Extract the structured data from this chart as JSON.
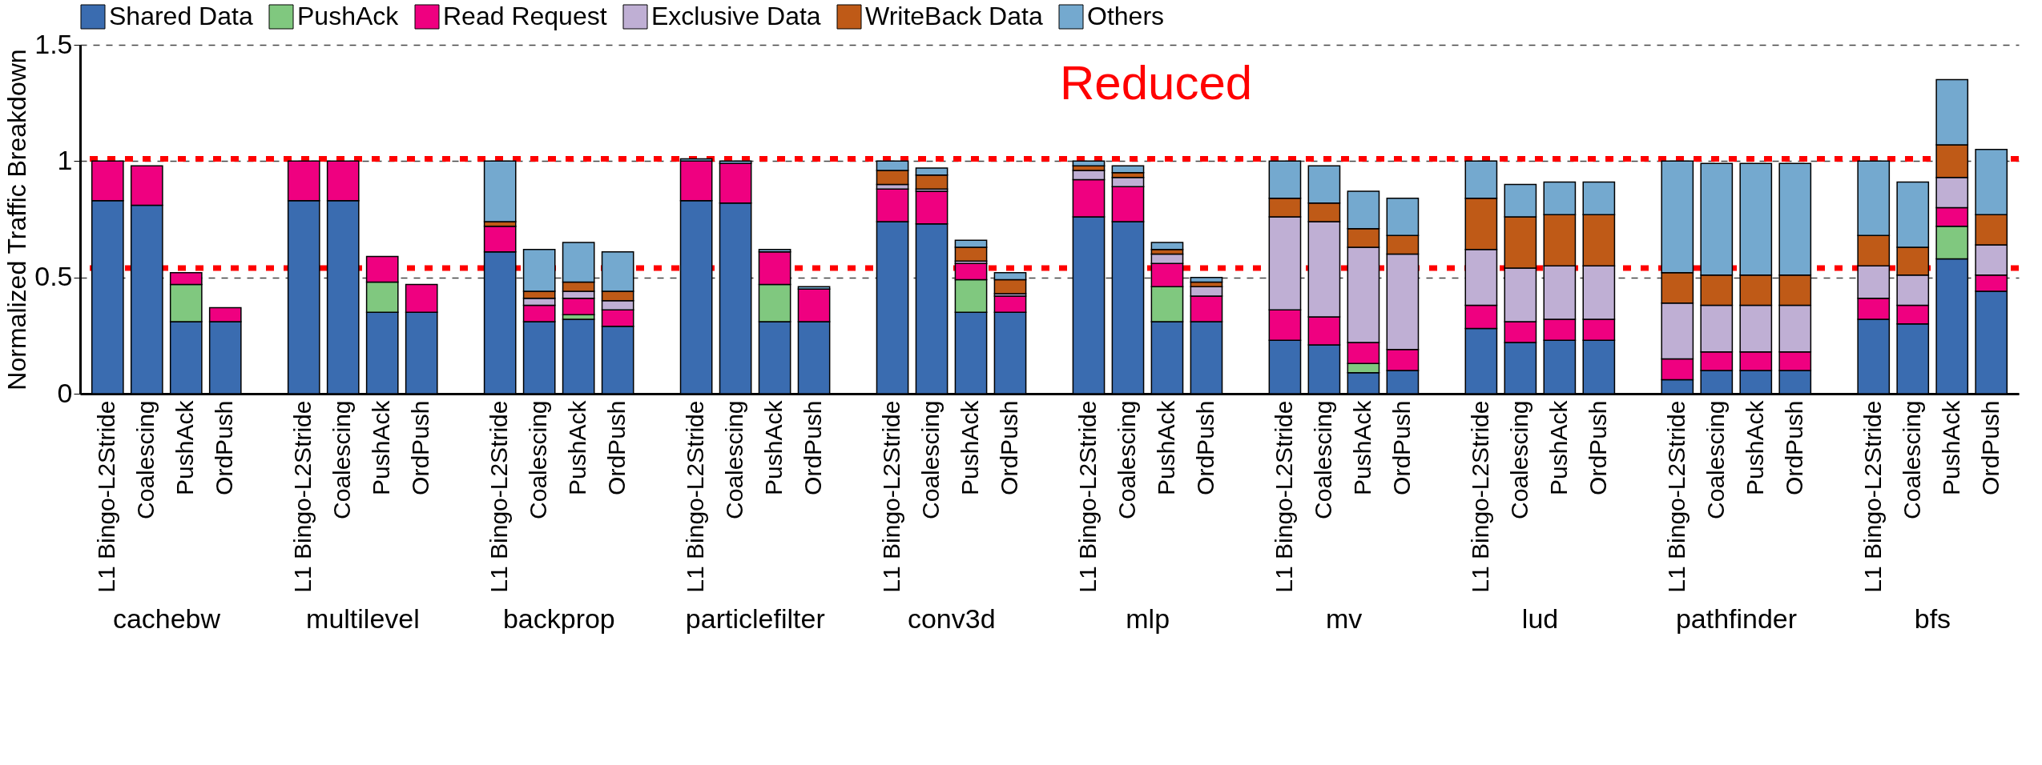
{
  "chart_data": {
    "type": "bar",
    "stacked": true,
    "ylabel": "Normalized Traffic Breakdown",
    "categories": [
      "L1 Bingo-L2Stride",
      "Coalescing",
      "PushAck",
      "OrdPush",
      "L1 Bingo-L2Stride",
      "Coalescing",
      "PushAck",
      "OrdPush",
      "L1 Bingo-L2Stride",
      "Coalescing",
      "PushAck",
      "OrdPush",
      "L1 Bingo-L2Stride",
      "Coalescing",
      "PushAck",
      "OrdPush",
      "L1 Bingo-L2Stride",
      "Coalescing",
      "PushAck",
      "OrdPush",
      "L1 Bingo-L2Stride",
      "Coalescing",
      "PushAck",
      "OrdPush",
      "L1 Bingo-L2Stride",
      "Coalescing",
      "PushAck",
      "OrdPush",
      "L1 Bingo-L2Stride",
      "Coalescing",
      "PushAck",
      "OrdPush",
      "L1 Bingo-L2Stride",
      "Coalescing",
      "PushAck",
      "OrdPush",
      "L1 Bingo-L2Stride",
      "Coalescing",
      "PushAck",
      "OrdPush"
    ],
    "series": [
      {
        "name": "Shared Data",
        "color": "#3a6cb0",
        "values": [
          0.83,
          0.81,
          0.31,
          0.31,
          0.83,
          0.83,
          0.35,
          0.35,
          0.61,
          0.31,
          0.32,
          0.29,
          0.83,
          0.82,
          0.31,
          0.31,
          0.74,
          0.73,
          0.35,
          0.35,
          0.76,
          0.74,
          0.31,
          0.31,
          0.23,
          0.21,
          0.09,
          0.1,
          0.28,
          0.22,
          0.23,
          0.23,
          0.06,
          0.1,
          0.1,
          0.1,
          0.32,
          0.3,
          0.58,
          0.44
        ]
      },
      {
        "name": "PushAck",
        "color": "#80c87f",
        "values": [
          null,
          null,
          0.16,
          null,
          null,
          null,
          0.13,
          null,
          null,
          null,
          0.02,
          null,
          null,
          null,
          0.16,
          null,
          null,
          null,
          0.14,
          null,
          null,
          null,
          0.15,
          null,
          null,
          null,
          0.04,
          null,
          null,
          null,
          null,
          null,
          null,
          null,
          null,
          null,
          null,
          null,
          0.14,
          null
        ]
      },
      {
        "name": "Read Request",
        "color": "#ef0080",
        "values": [
          0.17,
          0.17,
          0.05,
          0.06,
          0.17,
          0.17,
          0.11,
          0.12,
          0.11,
          0.07,
          0.07,
          0.07,
          0.17,
          0.17,
          0.14,
          0.14,
          0.14,
          0.14,
          0.07,
          0.07,
          0.16,
          0.15,
          0.1,
          0.11,
          0.13,
          0.12,
          0.09,
          0.09,
          0.1,
          0.09,
          0.09,
          0.09,
          0.09,
          0.08,
          0.08,
          0.08,
          0.09,
          0.08,
          0.08,
          0.07
        ]
      },
      {
        "name": "Exclusive Data",
        "color": "#bfafd4",
        "values": [
          null,
          null,
          null,
          null,
          null,
          null,
          null,
          null,
          null,
          0.03,
          0.03,
          0.04,
          null,
          null,
          null,
          null,
          0.02,
          0.01,
          0.01,
          0.01,
          0.04,
          0.04,
          0.04,
          0.04,
          0.4,
          0.41,
          0.41,
          0.41,
          0.24,
          0.23,
          0.23,
          0.23,
          0.24,
          0.2,
          0.2,
          0.2,
          0.14,
          0.13,
          0.13,
          0.13
        ]
      },
      {
        "name": "WriteBack Data",
        "color": "#bf5a17",
        "values": [
          null,
          null,
          null,
          null,
          null,
          null,
          null,
          null,
          0.02,
          0.03,
          0.04,
          0.04,
          null,
          null,
          null,
          null,
          0.06,
          0.06,
          0.06,
          0.06,
          0.02,
          0.02,
          0.02,
          0.02,
          0.08,
          0.08,
          0.08,
          0.08,
          0.22,
          0.22,
          0.22,
          0.22,
          0.13,
          0.13,
          0.13,
          0.13,
          0.13,
          0.12,
          0.14,
          0.13
        ]
      },
      {
        "name": "Others",
        "color": "#74a9cf",
        "values": [
          null,
          null,
          null,
          null,
          null,
          null,
          null,
          null,
          0.26,
          0.18,
          0.17,
          0.17,
          0.01,
          0.01,
          0.01,
          0.01,
          0.04,
          0.03,
          0.03,
          0.03,
          0.02,
          0.03,
          0.03,
          0.02,
          0.16,
          0.16,
          0.16,
          0.16,
          0.16,
          0.14,
          0.14,
          0.14,
          0.48,
          0.48,
          0.48,
          0.48,
          0.32,
          0.28,
          0.28,
          0.28
        ]
      }
    ],
    "ylim": [
      0,
      1.5
    ],
    "yticks": [
      0,
      0.5,
      1,
      1.5
    ],
    "grid": "y",
    "legend": "top",
    "ref_lines": [
      {
        "axis": "y",
        "value": 1.01,
        "color": "#ff0000",
        "line_style": "dotted"
      },
      {
        "axis": "y",
        "value": 0.54,
        "color": "#ff0000",
        "line_style": "dotted"
      }
    ],
    "annotations": [
      "cachebw",
      "multilevel",
      "backprop",
      "particlefilter",
      "conv3d",
      "mlp",
      "mv",
      "lud",
      "pathfinder",
      "bfs",
      "Reduced"
    ]
  }
}
